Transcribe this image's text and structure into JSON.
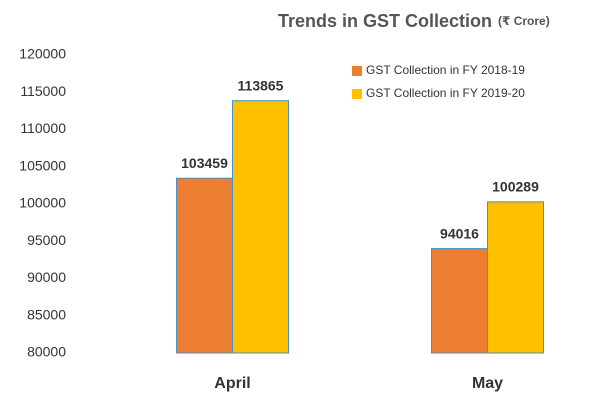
{
  "chart_data": {
    "type": "bar",
    "title": "Trends in GST Collection",
    "subtitle": "(₹ Crore)",
    "categories": [
      "April",
      "May"
    ],
    "series": [
      {
        "name": "GST Collection in FY 2018-19",
        "color": "#ed7d31",
        "values": [
          103459,
          94016
        ]
      },
      {
        "name": "GST Collection in FY 2019-20",
        "color": "#ffc000",
        "values": [
          113865,
          100289
        ]
      }
    ],
    "ylim": [
      80000,
      120000
    ],
    "yticks": [
      80000,
      85000,
      90000,
      95000,
      100000,
      105000,
      110000,
      115000,
      120000
    ],
    "grid": false,
    "legend": "top-right"
  }
}
